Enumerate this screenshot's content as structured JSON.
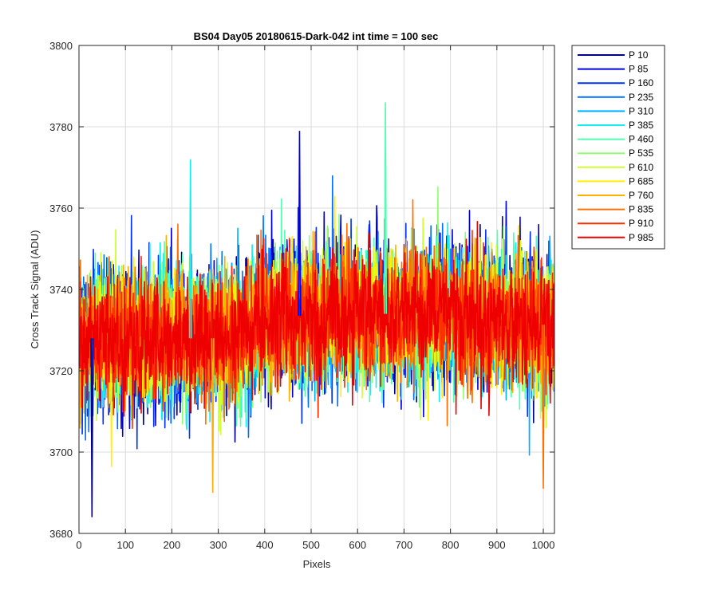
{
  "chart_data": {
    "type": "line",
    "title": "BS04 Day05 20180615-Dark-042 int time = 100 sec",
    "xlabel": "Pixels",
    "ylabel": "Cross Track Signal (ADU)",
    "xlim": [
      0,
      1024
    ],
    "ylim": [
      3680,
      3800
    ],
    "xticks": [
      0,
      100,
      200,
      300,
      400,
      500,
      600,
      700,
      800,
      900,
      1000
    ],
    "yticks": [
      3680,
      3700,
      3720,
      3740,
      3760,
      3780,
      3800
    ],
    "grid": true,
    "legend_position": "outside-right",
    "x_range": [
      1,
      1024
    ],
    "approx_mean_by_pixel": [
      {
        "x": 1,
        "y": 3728
      },
      {
        "x": 350,
        "y": 3728
      },
      {
        "x": 400,
        "y": 3733
      },
      {
        "x": 550,
        "y": 3734
      },
      {
        "x": 800,
        "y": 3734
      },
      {
        "x": 1024,
        "y": 3731
      }
    ],
    "approx_noise_std": 9,
    "notable_spikes": [
      {
        "x": 28,
        "y": 3684
      },
      {
        "x": 240,
        "y": 3772
      },
      {
        "x": 288,
        "y": 3690
      },
      {
        "x": 475,
        "y": 3779
      },
      {
        "x": 660,
        "y": 3786
      },
      {
        "x": 1000,
        "y": 3691
      }
    ],
    "series": [
      {
        "name": "P 10",
        "color": "#00008F"
      },
      {
        "name": "P 85",
        "color": "#0000DF"
      },
      {
        "name": "P 160",
        "color": "#0030FF"
      },
      {
        "name": "P 235",
        "color": "#0070FF"
      },
      {
        "name": "P 310",
        "color": "#00B0FF"
      },
      {
        "name": "P 385",
        "color": "#10F0EF"
      },
      {
        "name": "P 460",
        "color": "#50FFAF"
      },
      {
        "name": "P 535",
        "color": "#90FF6F"
      },
      {
        "name": "P 610",
        "color": "#CFFF30"
      },
      {
        "name": "P 685",
        "color": "#FFEF00"
      },
      {
        "name": "P 760",
        "color": "#FFAF00"
      },
      {
        "name": "P 835",
        "color": "#FF7000"
      },
      {
        "name": "P 910",
        "color": "#FF3000"
      },
      {
        "name": "P 985",
        "color": "#EF0000"
      }
    ]
  }
}
